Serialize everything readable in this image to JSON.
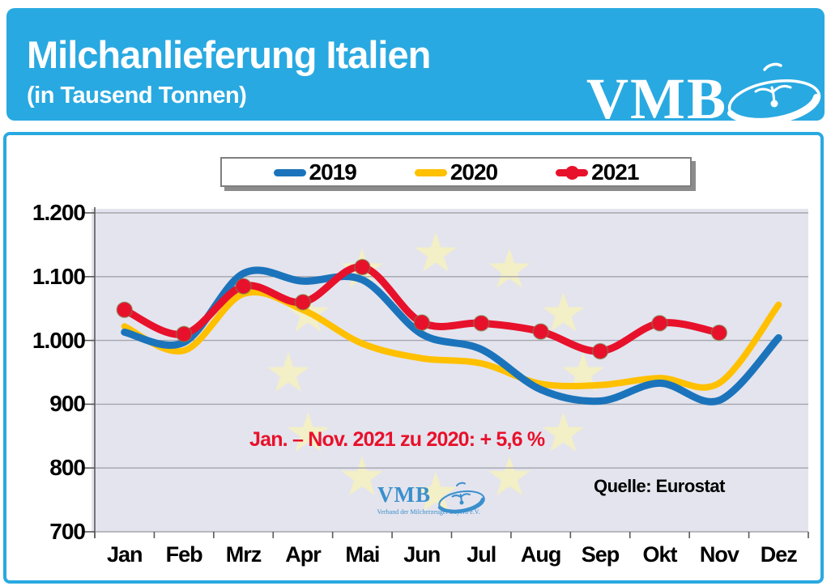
{
  "header": {
    "title": "Milchanlieferung Italien",
    "subtitle": "(in Tausend Tonnen)",
    "logo_text": "VMB",
    "background_color": "#29A9E1",
    "text_color": "#FFFFFF"
  },
  "legend": {
    "items": [
      {
        "label": "2019",
        "color": "#1B74BB"
      },
      {
        "label": "2020",
        "color": "#FFC000"
      },
      {
        "label": "2021",
        "color": "#E8112B"
      }
    ]
  },
  "annotation": {
    "text": "Jan. – Nov. 2021 zu 2020: + 5,6 %",
    "color": "#E8112B"
  },
  "source_label": "Quelle: Eurostat",
  "watermark": {
    "logo_text": "VMB",
    "subtitle": "Verband der Milcherzeuger Bayern e.V.",
    "color": "#3A8FCC"
  },
  "chart_data": {
    "type": "line",
    "title": "Milchanlieferung Italien (in Tausend Tonnen)",
    "unit": "Tausend Tonnen",
    "categories": [
      "Jan",
      "Feb",
      "Mrz",
      "Apr",
      "Mai",
      "Jun",
      "Jul",
      "Aug",
      "Sep",
      "Okt",
      "Nov",
      "Dez"
    ],
    "series": [
      {
        "name": "2019",
        "color": "#1B74BB",
        "line_width": 9,
        "marker": false,
        "values": [
          1013,
          997,
          1105,
          1093,
          1095,
          1010,
          986,
          923,
          905,
          933,
          906,
          1004
        ]
      },
      {
        "name": "2020",
        "color": "#FFC000",
        "line_width": 8,
        "marker": false,
        "values": [
          1022,
          984,
          1073,
          1048,
          995,
          972,
          964,
          932,
          930,
          941,
          933,
          1056
        ]
      },
      {
        "name": "2021",
        "color": "#E8112B",
        "line_width": 9,
        "marker": true,
        "values": [
          1048,
          1010,
          1085,
          1060,
          1115,
          1028,
          1027,
          1014,
          983,
          1027,
          1012,
          null
        ]
      }
    ],
    "ylim": [
      700,
      1200
    ],
    "yticks": [
      {
        "value": 1200,
        "label": "1.200"
      },
      {
        "value": 1100,
        "label": "1.100"
      },
      {
        "value": 1000,
        "label": "1.000"
      },
      {
        "value": 900,
        "label": "900"
      },
      {
        "value": 800,
        "label": "800"
      },
      {
        "value": 700,
        "label": "700"
      }
    ],
    "grid": true,
    "legend_position": "top",
    "plot_background": "#E4E4EE",
    "eu_stars_color": "#F3EFC6",
    "gridline_color": "#A5A5AD",
    "axis_color": "#595959"
  }
}
